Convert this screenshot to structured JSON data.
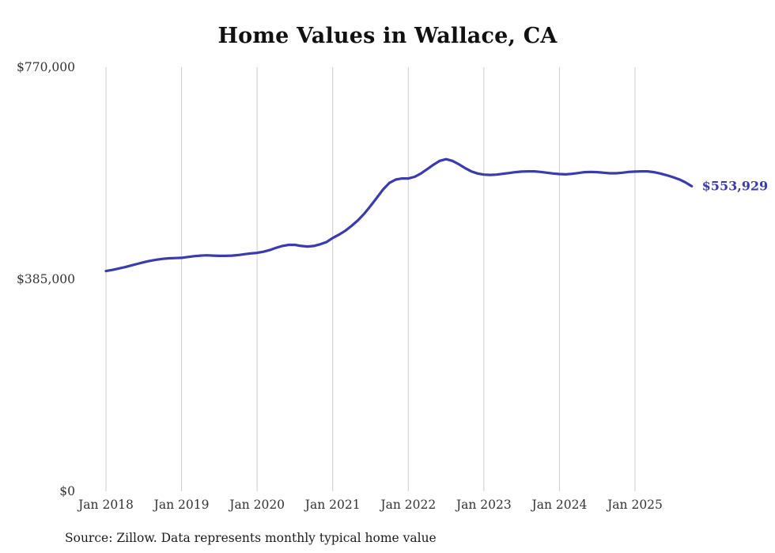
{
  "page": {
    "title": "Home Values in Wallace, CA",
    "source_note": "Source: Zillow. Data represents monthly typical home value"
  },
  "colors": {
    "accent": "#3b3bad",
    "gridline": "#cccccc",
    "tick_text": "#333333",
    "title_text": "#111111"
  },
  "chart_data": {
    "type": "line",
    "title": "Home Values in Wallace, CA",
    "xlabel": "",
    "ylabel": "",
    "unit": "USD",
    "grid": "vertical-only",
    "legend": "none",
    "x_start": "2018-01",
    "x_interval": "month",
    "x_tick_labels": [
      "Jan 2018",
      "Jan 2019",
      "Jan 2020",
      "Jan 2021",
      "Jan 2022",
      "Jan 2023",
      "Jan 2024",
      "Jan 2025"
    ],
    "x_tick_month_indices": [
      0,
      12,
      24,
      36,
      48,
      60,
      72,
      84
    ],
    "ylim": [
      0,
      770000
    ],
    "y_ticks": [
      {
        "value": 770000,
        "label": "$770,000"
      },
      {
        "value": 385000,
        "label": "$385,000"
      },
      {
        "value": 0,
        "label": "$0"
      }
    ],
    "end_label": "$553,929",
    "last_value": 553929,
    "series": [
      {
        "name": "Typical home value",
        "color": "#3b3bad",
        "values": [
          400000,
          402000,
          404500,
          407000,
          410000,
          413000,
          416000,
          418500,
          420500,
          422000,
          423000,
          423500,
          424000,
          425500,
          427000,
          428000,
          428500,
          428000,
          427500,
          427500,
          428000,
          429000,
          430500,
          432000,
          433000,
          435000,
          438000,
          442000,
          445500,
          447500,
          447500,
          445500,
          444500,
          445500,
          448500,
          452500,
          460000,
          466000,
          473000,
          482000,
          492000,
          504000,
          518000,
          533000,
          548000,
          560000,
          566000,
          568000,
          568000,
          571000,
          577000,
          585000,
          593000,
          600000,
          603000,
          600000,
          594000,
          587000,
          581000,
          577000,
          575000,
          574500,
          575000,
          576500,
          578000,
          579500,
          580500,
          581000,
          581000,
          580000,
          578500,
          577000,
          576000,
          575500,
          576500,
          578000,
          579500,
          580000,
          579500,
          578500,
          577500,
          577500,
          578500,
          580000,
          580500,
          581000,
          581000,
          579500,
          577000,
          574000,
          570500,
          566500,
          561000,
          553929
        ]
      }
    ]
  }
}
